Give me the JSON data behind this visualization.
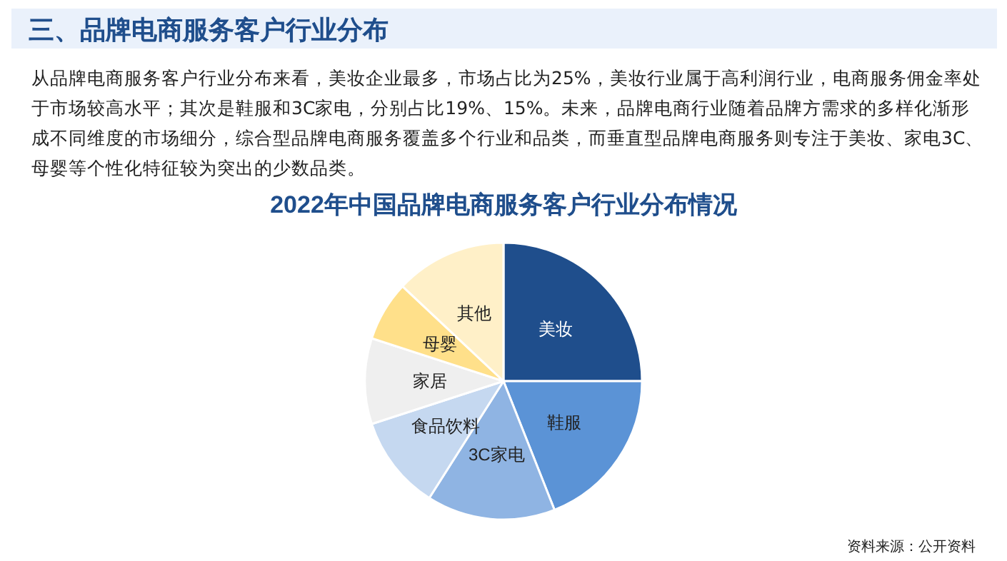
{
  "chart_data": {
    "type": "pie",
    "title": "三、品牌电商服务客户行业分布",
    "subtitle": "2022年中国品牌电商服务客户行业分布情况",
    "annotations": [
      "从品牌电商服务客户行业分布来看，美妆企业最多，市场占比为25%，美妆行业属于高利润行业，电商服务佣金率处于市场较高水平；其次是鞋服和3C家电，分别占比19%、15%。未来，品牌电商行业随着品牌方需求的多样化渐形成不同维度的市场细分，综合型品牌电商服务覆盖多个行业和品类，而垂直型品牌电商服务则专注于美妆、家电3C、母婴等个性化特征较为突出的少数品类。",
      "资料来源：公开资料"
    ],
    "categories": [
      "美妆",
      "鞋服",
      "3C家电",
      "食品饮料",
      "家居",
      "母婴",
      "其他"
    ],
    "values": [
      25,
      19,
      15,
      11,
      10,
      7,
      13
    ],
    "colors": [
      "#1f4e8c",
      "#5b93d6",
      "#8fb4e3",
      "#c5d8f0",
      "#efefef",
      "#ffe08a",
      "#fff0c8"
    ]
  }
}
